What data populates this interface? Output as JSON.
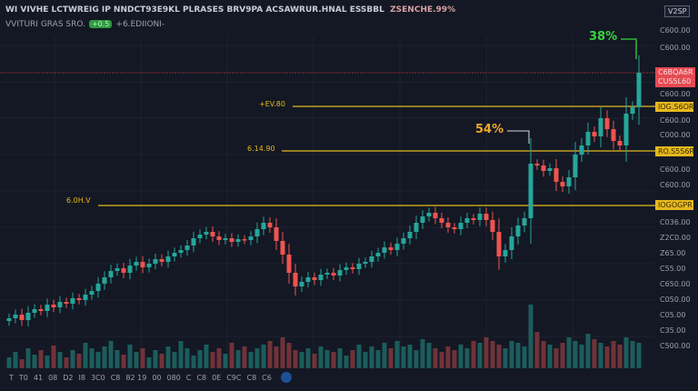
{
  "header": {
    "title": "WI VIVHE LCTWREIG IP NNDCT93E9KL PLRASES BRV9PA ACSAWRUR.HNAL ESSBBL",
    "title_suffix": "ZSENCHE.99%",
    "subtitle": "VVITURI GRAS SRO.",
    "badge": "+0.5",
    "subtitle_suffix": "+6.EDIIONI-"
  },
  "top_right_box": "V2SP",
  "colors": {
    "background": "#131824",
    "up": "#26a69a",
    "down": "#ef5350",
    "level": "#e5b81e",
    "current": "#e54a52",
    "gain": "#3ad13f",
    "annotation": "#f0a82a"
  },
  "chart_data": {
    "type": "candlestick",
    "ylim": [
      0,
      400
    ],
    "grid": true,
    "closes": [
      50,
      54,
      48,
      56,
      60,
      58,
      65,
      62,
      68,
      66,
      72,
      70,
      76,
      80,
      88,
      95,
      102,
      105,
      100,
      108,
      112,
      106,
      110,
      115,
      112,
      118,
      122,
      125,
      130,
      138,
      142,
      145,
      140,
      136,
      138,
      134,
      137,
      136,
      140,
      148,
      155,
      150,
      135,
      120,
      100,
      85,
      90,
      95,
      92,
      98,
      100,
      97,
      103,
      106,
      104,
      110,
      112,
      118,
      122,
      128,
      125,
      132,
      138,
      145,
      155,
      162,
      166,
      160,
      155,
      150,
      148,
      155,
      160,
      158,
      165,
      158,
      145,
      118,
      125,
      140,
      152,
      160,
      220,
      218,
      212,
      215,
      200,
      195,
      205,
      230,
      240,
      255,
      250,
      270,
      258,
      245,
      240,
      275,
      282,
      320
    ],
    "volumes": [
      12,
      18,
      10,
      22,
      15,
      20,
      14,
      25,
      18,
      12,
      20,
      16,
      28,
      22,
      18,
      24,
      30,
      20,
      15,
      26,
      18,
      22,
      12,
      20,
      16,
      24,
      18,
      30,
      22,
      14,
      20,
      26,
      18,
      22,
      16,
      28,
      20,
      24,
      18,
      22,
      26,
      30,
      24,
      34,
      28,
      20,
      18,
      22,
      16,
      24,
      20,
      18,
      22,
      14,
      20,
      26,
      18,
      24,
      20,
      28,
      22,
      30,
      24,
      26,
      20,
      32,
      28,
      22,
      18,
      24,
      20,
      26,
      22,
      30,
      28,
      34,
      30,
      26,
      22,
      30,
      28,
      24,
      70,
      40,
      30,
      26,
      22,
      28,
      34,
      30,
      26,
      38,
      32,
      28,
      24,
      30,
      26,
      34,
      30,
      28
    ],
    "levels": [
      {
        "label": "+EV.80",
        "axis_label": "IOG.S6OR"
      },
      {
        "label": "6.14.90",
        "axis_label": "RO.S5S6R"
      },
      {
        "label": "6.0H.V",
        "axis_label": "IOGOGPR"
      }
    ],
    "current_price": [
      "C6BQA6R",
      "CUS5L60"
    ],
    "annotations": [
      {
        "text": "38%"
      },
      {
        "text": "54%"
      }
    ],
    "y_tick_labels": [
      "C600.00",
      "C600.00",
      "C600.00",
      "C600.00",
      "C000.00",
      "C600.00",
      "C600.00",
      "C036.00",
      "Z2C0.00",
      "Z65.00",
      "C55.00",
      "C650.00",
      "C050.00",
      "C05.00",
      "C35.00",
      "C500.00"
    ],
    "x_tick_labels": [
      "T",
      "T0",
      "41",
      "08",
      "D2",
      "I8",
      "3C0",
      "C8",
      "82 19",
      "00",
      "080",
      "C",
      "C8",
      "0E",
      "C9C",
      "C8",
      "C6"
    ]
  }
}
